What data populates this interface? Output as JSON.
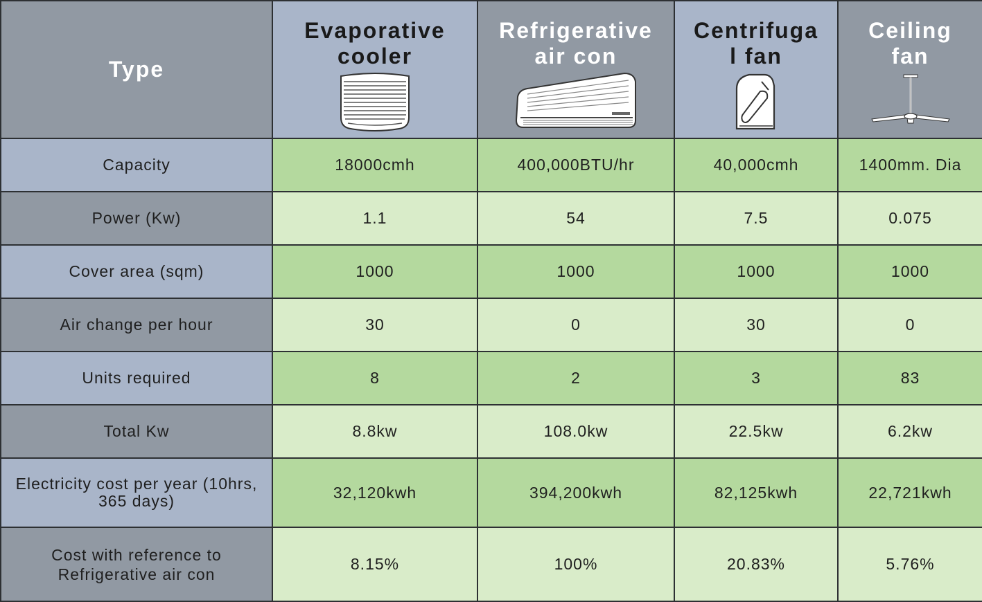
{
  "header": {
    "type_label": "Type",
    "products": [
      {
        "line1": "Evaporative",
        "line2": "cooler",
        "icon": "evaporative-cooler-icon"
      },
      {
        "line1": "Refrigerative",
        "line2": "air con",
        "icon": "air-conditioner-icon"
      },
      {
        "line1": "Centrifuga",
        "line2": "l fan",
        "icon": "centrifugal-fan-icon"
      },
      {
        "line1": "Ceiling",
        "line2": "fan",
        "icon": "ceiling-fan-icon"
      }
    ]
  },
  "rows": [
    {
      "label": "Capacity",
      "values": [
        "18000cmh",
        "400,000BTU/hr",
        "40,000cmh",
        "1400mm. Dia"
      ]
    },
    {
      "label": "Power (Kw)",
      "values": [
        "1.1",
        "54",
        "7.5",
        "0.075"
      ]
    },
    {
      "label": "Cover area (sqm)",
      "values": [
        "1000",
        "1000",
        "1000",
        "1000"
      ]
    },
    {
      "label": "Air change per hour",
      "values": [
        "30",
        "0",
        "30",
        "0"
      ]
    },
    {
      "label": "Units required",
      "values": [
        "8",
        "2",
        "3",
        "83"
      ]
    },
    {
      "label": "Total Kw",
      "values": [
        "8.8kw",
        "108.0kw",
        "22.5kw",
        "6.2kw"
      ]
    },
    {
      "label_line1": "Electricity cost per year (10hrs,",
      "label_line2": "365 days)",
      "values": [
        "32,120kwh",
        "394,200kwh",
        "82,125kwh",
        "22,721kwh"
      ]
    },
    {
      "label_line1": "Cost with reference to",
      "label_line2": "Refrigerative air con",
      "values": [
        "8.15%",
        "100%",
        "20.83%",
        "5.76%"
      ]
    }
  ],
  "colors": {
    "header_light": "#a9b5c9",
    "header_dark": "#9199a3",
    "cell_green_dark": "#b4d99e",
    "cell_green_light": "#d9ecc9",
    "border": "#2d3033"
  }
}
